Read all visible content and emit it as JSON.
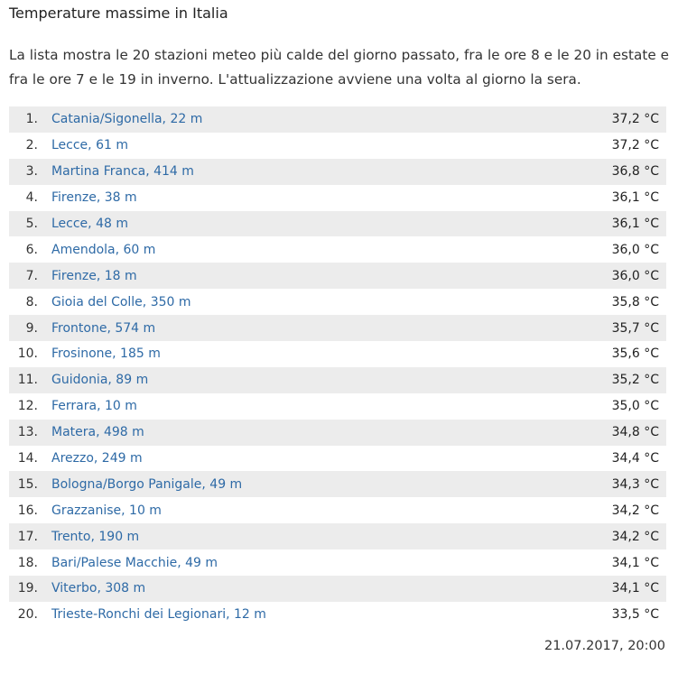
{
  "title": "Temperature massime in Italia",
  "intro": "La lista mostra le 20 stazioni meteo più calde del giorno passato, fra le ore 8 e le 20 in estate e fra le ore 7 e le 19 in inverno. L'attualizzazione avviene una volta al giorno la sera.",
  "stations": [
    {
      "rank": "1.",
      "name": "Catania/Sigonella, 22 m",
      "temp": "37,2 °C"
    },
    {
      "rank": "2.",
      "name": "Lecce, 61 m",
      "temp": "37,2 °C"
    },
    {
      "rank": "3.",
      "name": "Martina Franca, 414 m",
      "temp": "36,8 °C"
    },
    {
      "rank": "4.",
      "name": "Firenze, 38 m",
      "temp": "36,1 °C"
    },
    {
      "rank": "5.",
      "name": "Lecce, 48 m",
      "temp": "36,1 °C"
    },
    {
      "rank": "6.",
      "name": "Amendola, 60 m",
      "temp": "36,0 °C"
    },
    {
      "rank": "7.",
      "name": "Firenze, 18 m",
      "temp": "36,0 °C"
    },
    {
      "rank": "8.",
      "name": "Gioia del Colle, 350 m",
      "temp": "35,8 °C"
    },
    {
      "rank": "9.",
      "name": "Frontone, 574 m",
      "temp": "35,7 °C"
    },
    {
      "rank": "10.",
      "name": "Frosinone, 185 m",
      "temp": "35,6 °C"
    },
    {
      "rank": "11.",
      "name": "Guidonia, 89 m",
      "temp": "35,2 °C"
    },
    {
      "rank": "12.",
      "name": "Ferrara, 10 m",
      "temp": "35,0 °C"
    },
    {
      "rank": "13.",
      "name": "Matera, 498 m",
      "temp": "34,8 °C"
    },
    {
      "rank": "14.",
      "name": "Arezzo, 249 m",
      "temp": "34,4 °C"
    },
    {
      "rank": "15.",
      "name": "Bologna/Borgo Panigale, 49 m",
      "temp": "34,3 °C"
    },
    {
      "rank": "16.",
      "name": "Grazzanise, 10 m",
      "temp": "34,2 °C"
    },
    {
      "rank": "17.",
      "name": "Trento, 190 m",
      "temp": "34,2 °C"
    },
    {
      "rank": "18.",
      "name": "Bari/Palese Macchie, 49 m",
      "temp": "34,1 °C"
    },
    {
      "rank": "19.",
      "name": "Viterbo, 308 m",
      "temp": "34,1 °C"
    },
    {
      "rank": "20.",
      "name": "Trieste-Ronchi dei Legionari, 12 m",
      "temp": "33,5 °C"
    }
  ],
  "timestamp": "21.07.2017, 20:00",
  "colors": {
    "link": "#2e6aa6",
    "row_stripe": "#ececec",
    "text": "#222222"
  }
}
